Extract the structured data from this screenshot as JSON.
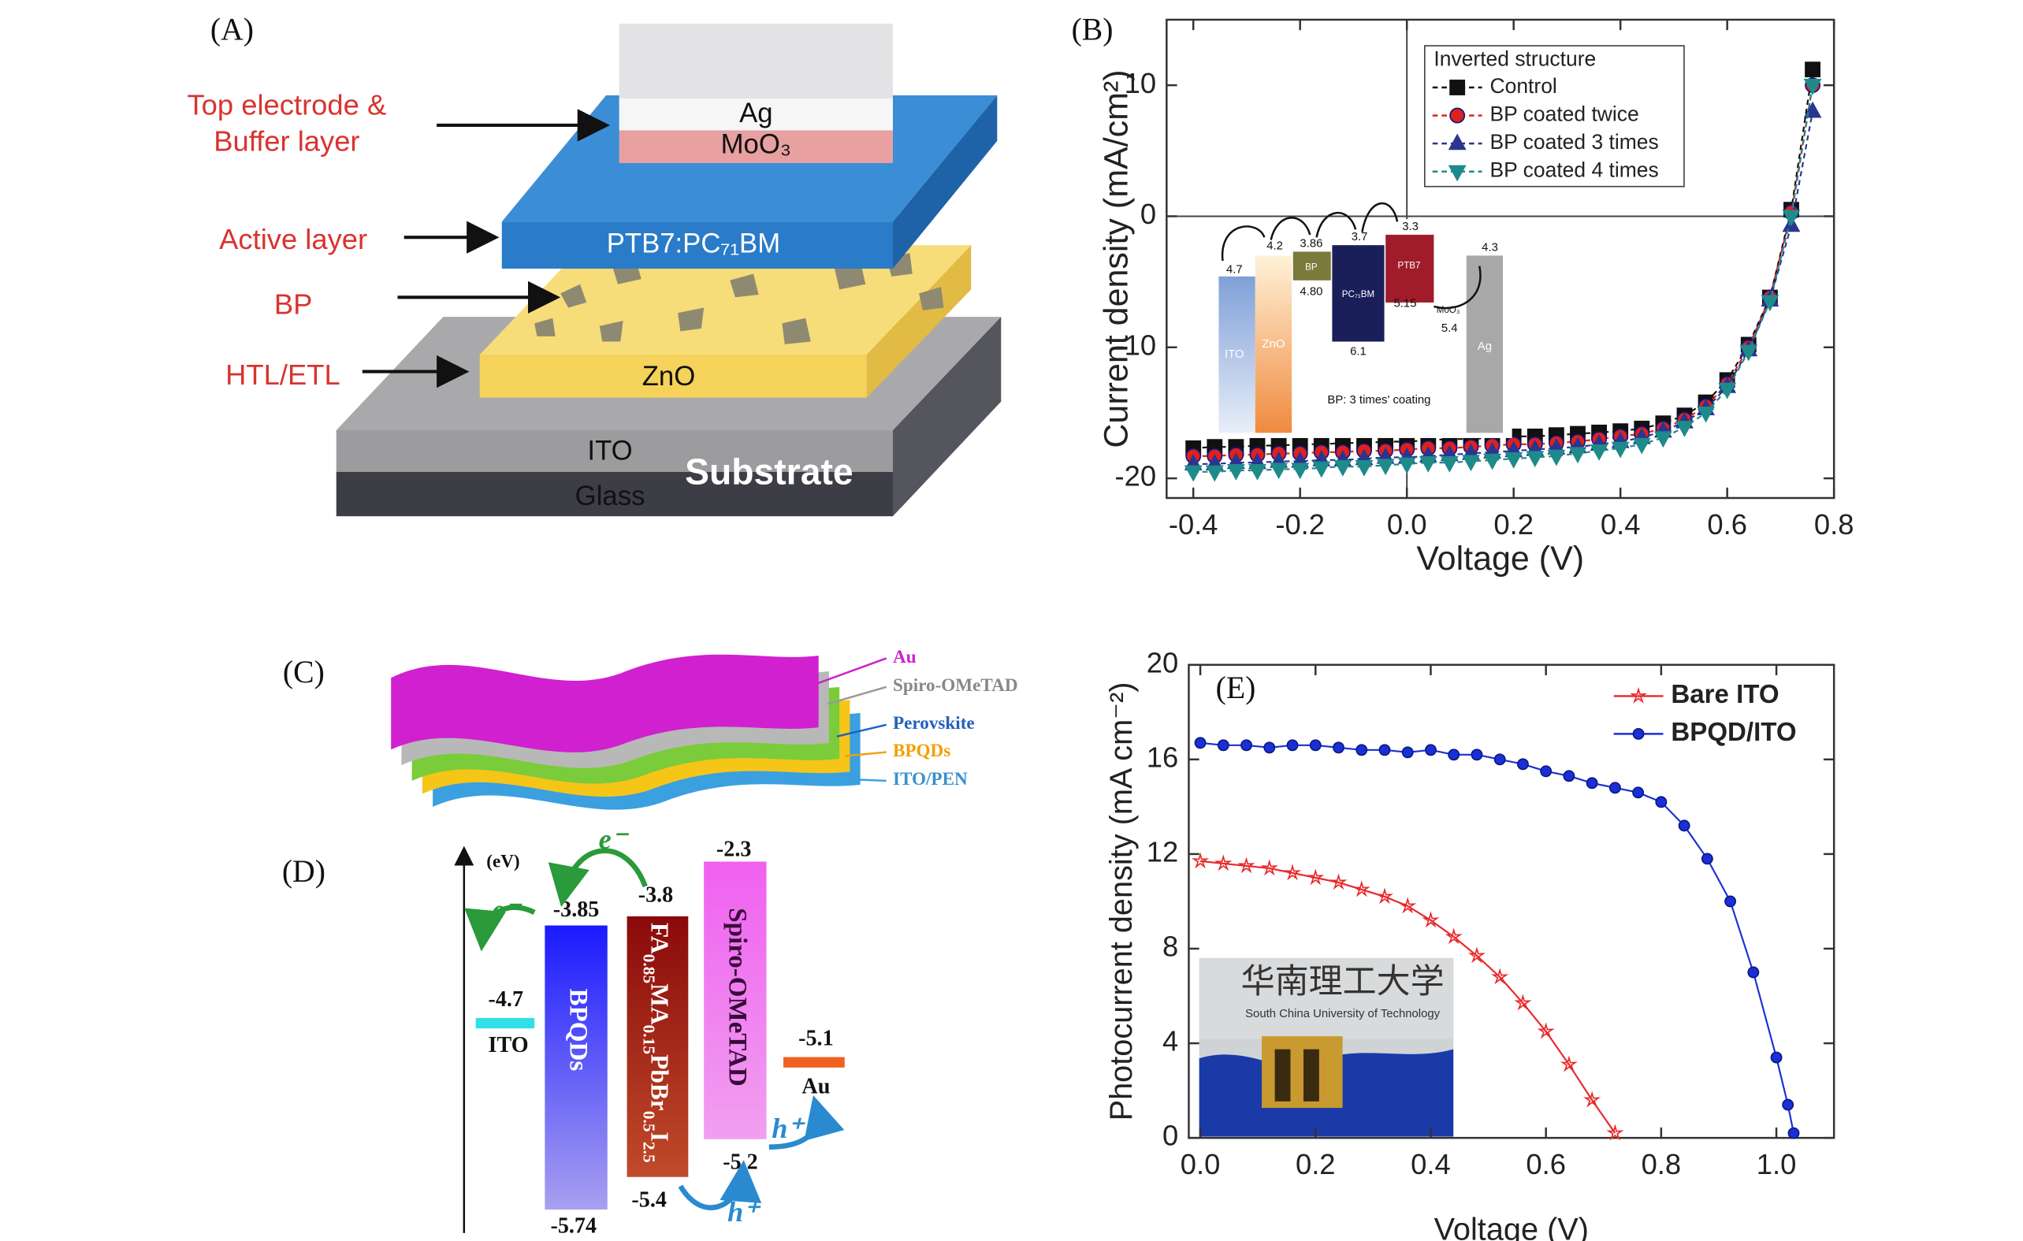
{
  "panel_labels": [
    "(A)",
    "(B)",
    "(C)",
    "(D)",
    "(E)"
  ],
  "panel_a": {
    "labels": [
      "Top electrode &",
      "Buffer layer",
      "Active layer",
      "BP",
      "HTL/ETL"
    ],
    "layers": [
      "Ag",
      "MoO₃",
      "PTB7:PC₇₁BM",
      "ZnO",
      "ITO",
      "Substrate",
      "Glass"
    ]
  },
  "panel_c": {
    "labels": [
      "Au",
      "Spiro-OMeTAD",
      "Perovskite",
      "BPQDs",
      "ITO/PEN"
    ]
  },
  "panel_d": {
    "unit": "(eV)",
    "ito": {
      "name": "ITO",
      "level": "-4.7"
    },
    "bpqds": {
      "name": "BPQDs",
      "top": "-3.85",
      "bottom": "-5.74"
    },
    "perovskite": {
      "name_parts": [
        "FA",
        "0.85",
        "MA",
        "0.15",
        "PbBr",
        "0.5",
        "I",
        "2.5"
      ],
      "top": "-3.8",
      "bottom": "-5.4"
    },
    "spiro": {
      "name": "Spiro-OMeTAD",
      "top": "-2.3",
      "bottom": "-5.2"
    },
    "au": {
      "name": "Au",
      "level": "-5.1"
    },
    "carriers": [
      "e⁻",
      "e⁻",
      "h⁺",
      "h⁺"
    ]
  },
  "inset_b": {
    "boxes": [
      {
        "name": "ITO",
        "top": "4.7"
      },
      {
        "name": "ZnO",
        "top": "4.2"
      },
      {
        "name": "BP",
        "top": "3.86",
        "bottom": "4.80"
      },
      {
        "name": "PC₇₁BM",
        "top": "3.7",
        "bottom": "6.1"
      },
      {
        "name": "PTB7",
        "top": "3.3",
        "bottom": "5.15"
      },
      {
        "name": "MoO₃",
        "top": "5.4"
      },
      {
        "name": "Ag",
        "top": "4.3"
      }
    ],
    "note": "BP: 3 times' coating"
  },
  "photo_e": {
    "title": "华南理工大学",
    "subtitle": "South China University of Technology"
  },
  "chart_data": [
    {
      "type": "line",
      "x_label": "Voltage (V)",
      "y_label": "Current density (mA/cm²)",
      "legend_title": "Inverted structure",
      "legend": "upper right",
      "line_style": "dashed",
      "zero_lines": true,
      "xlim": [
        -0.45,
        0.8
      ],
      "ylim": [
        -21.5,
        15
      ],
      "xticks": [
        -0.4,
        -0.2,
        {
          "value": 0,
          "label": "0.0"
        },
        0.2,
        0.4,
        0.6,
        0.8
      ],
      "yticks": [
        -20,
        -10,
        0,
        10
      ],
      "x": [
        -0.4,
        -0.36,
        -0.32,
        -0.28,
        -0.24,
        -0.2,
        -0.16,
        -0.12,
        -0.08,
        -0.04,
        0,
        0.04,
        0.08,
        0.12,
        0.16,
        0.2,
        0.24,
        0.28,
        0.32,
        0.36,
        0.4,
        0.44,
        0.48,
        0.52,
        0.56,
        0.6,
        0.64,
        0.68,
        0.72,
        0.76
      ],
      "series": [
        {
          "name": "Control",
          "color": "#111111",
          "marker": "square",
          "values": [
            -17.7,
            -17.6,
            -17.6,
            -17.5,
            -17.5,
            -17.4,
            -17.4,
            -17.3,
            -17.3,
            -17.2,
            -17.2,
            -17.1,
            -17.0,
            -17.0,
            -16.9,
            -16.8,
            -16.8,
            -16.7,
            -16.6,
            -16.5,
            -16.4,
            -16.2,
            -15.8,
            -15.2,
            -14.2,
            -12.5,
            -9.8,
            -6.2,
            0.5,
            11.2
          ]
        },
        {
          "name": "BP coated twice",
          "color": "#e0201c",
          "marker": "circle",
          "values": [
            -18.3,
            -18.3,
            -18.2,
            -18.2,
            -18.1,
            -18.1,
            -18.0,
            -18.0,
            -17.9,
            -17.9,
            -17.8,
            -17.7,
            -17.7,
            -17.6,
            -17.5,
            -17.4,
            -17.4,
            -17.3,
            -17.2,
            -17.0,
            -16.8,
            -16.6,
            -16.2,
            -15.5,
            -14.5,
            -12.8,
            -10.0,
            -6.2,
            0.3,
            10.0
          ]
        },
        {
          "name": "BP coated 3 times",
          "color": "#2a3590",
          "marker": "triangle-up",
          "values": [
            -18.9,
            -18.9,
            -18.8,
            -18.8,
            -18.7,
            -18.7,
            -18.6,
            -18.6,
            -18.5,
            -18.4,
            -18.4,
            -18.3,
            -18.2,
            -18.1,
            -18.0,
            -17.9,
            -17.8,
            -17.7,
            -17.6,
            -17.4,
            -17.2,
            -16.9,
            -16.4,
            -15.7,
            -14.7,
            -13.0,
            -10.2,
            -6.4,
            -0.7,
            8.0
          ]
        },
        {
          "name": "BP coated 4 times",
          "color": "#1f8a8a",
          "marker": "triangle-down",
          "values": [
            -19.5,
            -19.5,
            -19.4,
            -19.4,
            -19.3,
            -19.3,
            -19.2,
            -19.1,
            -19.1,
            -19.0,
            -18.9,
            -18.8,
            -18.8,
            -18.7,
            -18.6,
            -18.5,
            -18.4,
            -18.3,
            -18.1,
            -17.9,
            -17.7,
            -17.4,
            -16.9,
            -16.1,
            -15.0,
            -13.2,
            -10.3,
            -6.5,
            0.0,
            10.0
          ]
        }
      ]
    },
    {
      "type": "line",
      "x_label": "Voltage (V)",
      "y_label": "Photocurrent density (mA cm⁻²)",
      "legend": "upper right",
      "line_style": "solid",
      "xlim": [
        -0.02,
        1.1
      ],
      "ylim": [
        0,
        20
      ],
      "xticks": [
        {
          "value": 0,
          "label": "0.0"
        },
        0.2,
        0.4,
        0.6,
        0.8,
        {
          "value": 1,
          "label": "1.0"
        }
      ],
      "yticks": [
        0,
        4,
        8,
        12,
        16,
        20
      ],
      "series": [
        {
          "name": "Bare ITO",
          "color": "#e8282a",
          "marker": "star",
          "x": [
            0,
            0.04,
            0.08,
            0.12,
            0.16,
            0.2,
            0.24,
            0.28,
            0.32,
            0.36,
            0.4,
            0.44,
            0.48,
            0.52,
            0.56,
            0.6,
            0.64,
            0.68,
            0.72
          ],
          "values": [
            11.7,
            11.6,
            11.5,
            11.4,
            11.2,
            11.0,
            10.8,
            10.5,
            10.2,
            9.8,
            9.2,
            8.5,
            7.7,
            6.8,
            5.7,
            4.5,
            3.1,
            1.6,
            0.2
          ]
        },
        {
          "name": "BPQD/ITO",
          "color": "#1a2fd6",
          "marker": "circle",
          "x": [
            0,
            0.04,
            0.08,
            0.12,
            0.16,
            0.2,
            0.24,
            0.28,
            0.32,
            0.36,
            0.4,
            0.44,
            0.48,
            0.52,
            0.56,
            0.6,
            0.64,
            0.68,
            0.72,
            0.76,
            0.8,
            0.84,
            0.88,
            0.92,
            0.96,
            1.0,
            1.02,
            1.03
          ],
          "values": [
            16.7,
            16.6,
            16.6,
            16.5,
            16.6,
            16.6,
            16.5,
            16.4,
            16.4,
            16.3,
            16.4,
            16.2,
            16.2,
            16.0,
            15.8,
            15.5,
            15.3,
            15.0,
            14.8,
            14.6,
            14.2,
            13.2,
            11.8,
            10.0,
            7.0,
            3.4,
            1.4,
            0.2
          ]
        }
      ]
    }
  ]
}
